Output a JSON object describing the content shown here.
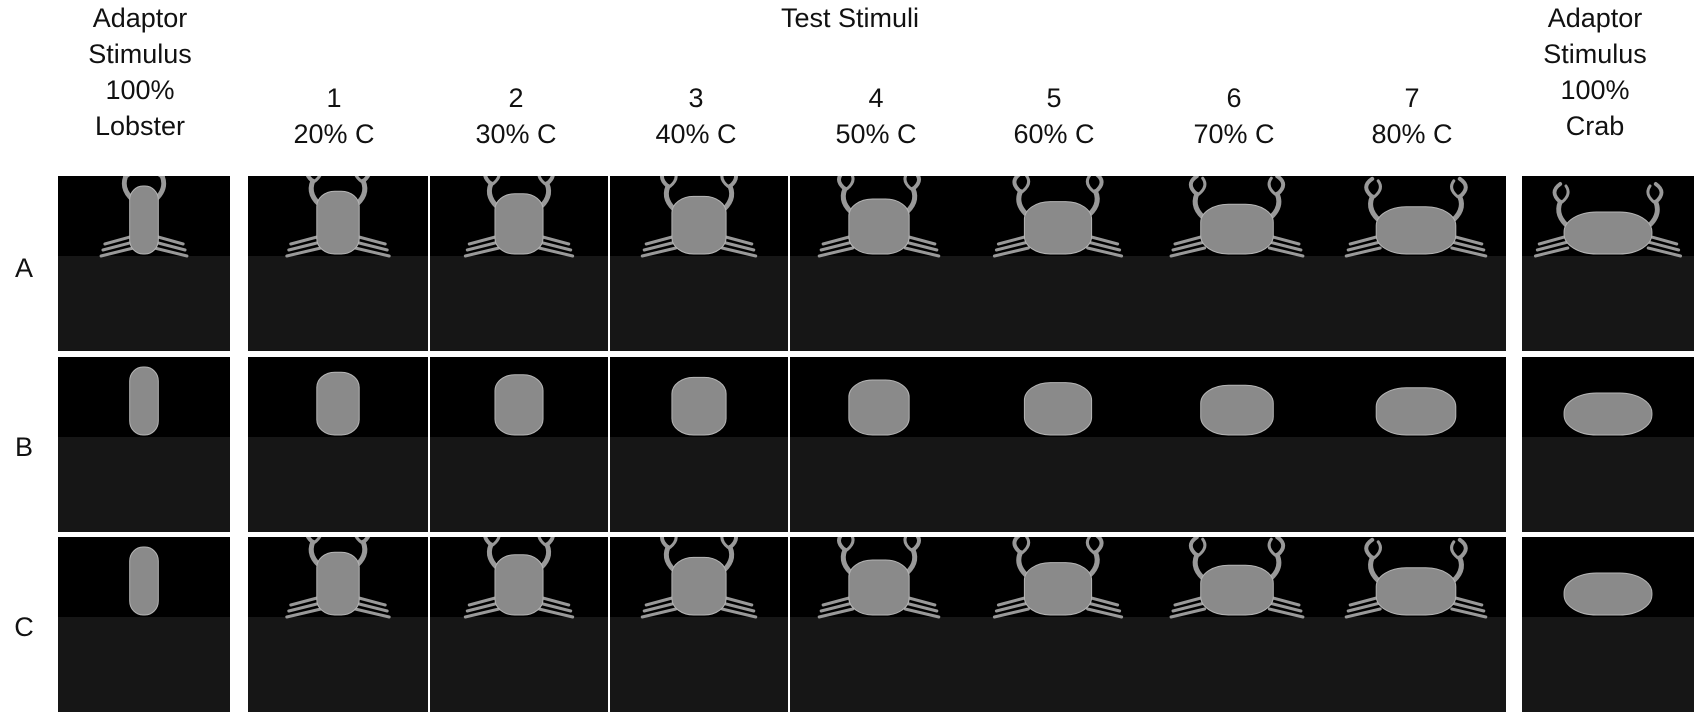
{
  "adaptor_left": {
    "lines": [
      "Adaptor",
      "Stimulus",
      "100%",
      "Lobster"
    ]
  },
  "test_title": "Test Stimuli",
  "columns": [
    {
      "num": "1",
      "pct": "20% C"
    },
    {
      "num": "2",
      "pct": "30% C"
    },
    {
      "num": "3",
      "pct": "40% C"
    },
    {
      "num": "4",
      "pct": "50% C"
    },
    {
      "num": "5",
      "pct": "60% C"
    },
    {
      "num": "6",
      "pct": "70% C"
    },
    {
      "num": "7",
      "pct": "80% C"
    }
  ],
  "adaptor_right": {
    "lines": [
      "Adaptor",
      "Stimulus",
      "100%",
      "Crab"
    ]
  },
  "rows": [
    {
      "label": "A",
      "claws": [
        true,
        true,
        true,
        true,
        true,
        true,
        true,
        true,
        true
      ],
      "crab_fraction": [
        0.0,
        0.2,
        0.3,
        0.4,
        0.5,
        0.6,
        0.7,
        0.8,
        1.0
      ]
    },
    {
      "label": "B",
      "claws": [
        false,
        false,
        false,
        false,
        false,
        false,
        false,
        false,
        false
      ],
      "crab_fraction": [
        0.0,
        0.2,
        0.3,
        0.4,
        0.5,
        0.6,
        0.7,
        0.8,
        1.0
      ]
    },
    {
      "label": "C",
      "claws": [
        false,
        true,
        true,
        true,
        true,
        true,
        true,
        true,
        false
      ],
      "crab_fraction": [
        0.0,
        0.2,
        0.3,
        0.4,
        0.5,
        0.6,
        0.7,
        0.8,
        1.0
      ]
    }
  ],
  "colors": {
    "sky": "#000000",
    "ground": "#161616",
    "body": "#8a8a8a",
    "body_edge": "#b5b5b5",
    "claw": "#999999"
  }
}
